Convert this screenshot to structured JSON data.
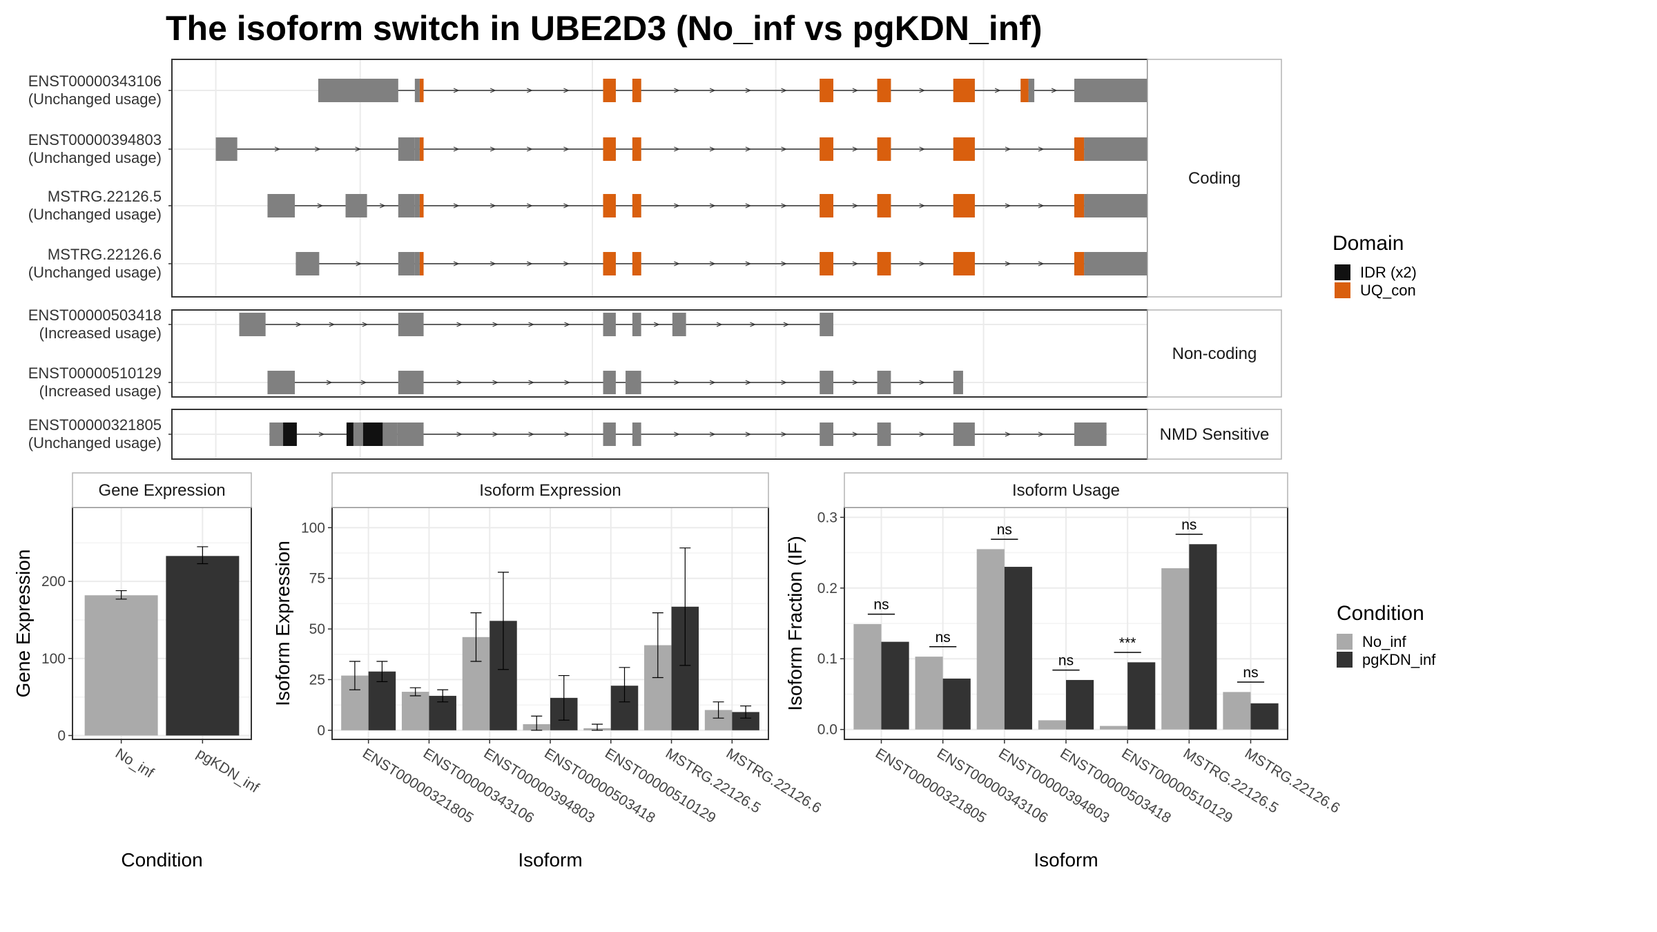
{
  "title": "The isoform switch in UBE2D3 (No_inf vs pgKDN_inf)",
  "colors": {
    "exon": "#808080",
    "idr": "#111111",
    "uq_con": "#D95F0E",
    "no_inf": "#AAAAAA",
    "pgkdn_inf": "#333333",
    "grid": "#EBEBEB",
    "strip_bg": "#FFFFFF",
    "panel_border": "#333333",
    "strip_border": "#B3B3B3"
  },
  "structure": {
    "x_range": [
      0,
      1000
    ],
    "groups": [
      {
        "label": "Coding",
        "transcripts": [
          {
            "id": "ENST00000343106",
            "usage": "(Unchanged usage)",
            "exons": [
              [
                150,
                232
              ],
              [
                249,
                254
              ],
              [
                442,
                455
              ],
              [
                472,
                481
              ],
              [
                664,
                678
              ],
              [
                723,
                737
              ],
              [
                801,
                823
              ],
              [
                870,
                878
              ],
              [
                878,
                884
              ],
              [
                925,
                1005
              ]
            ],
            "domains": [
              {
                "type": "uq_con",
                "spans": [
                  [
                    254,
                    258
                  ],
                  [
                    442,
                    455
                  ],
                  [
                    472,
                    481
                  ],
                  [
                    664,
                    678
                  ],
                  [
                    723,
                    737
                  ],
                  [
                    801,
                    823
                  ],
                  [
                    870,
                    878
                  ]
                ]
              }
            ]
          },
          {
            "id": "ENST00000394803",
            "usage": "(Unchanged usage)",
            "exons": [
              [
                45,
                67
              ],
              [
                232,
                249
              ],
              [
                249,
                254
              ],
              [
                442,
                455
              ],
              [
                472,
                481
              ],
              [
                664,
                678
              ],
              [
                723,
                737
              ],
              [
                801,
                823
              ],
              [
                925,
                935
              ],
              [
                935,
                1024
              ]
            ],
            "domains": [
              {
                "type": "uq_con",
                "spans": [
                  [
                    254,
                    258
                  ],
                  [
                    442,
                    455
                  ],
                  [
                    472,
                    481
                  ],
                  [
                    664,
                    678
                  ],
                  [
                    723,
                    737
                  ],
                  [
                    801,
                    823
                  ],
                  [
                    925,
                    935
                  ]
                ]
              }
            ]
          },
          {
            "id": "MSTRG.22126.5",
            "usage": "(Unchanged usage)",
            "exons": [
              [
                98,
                126
              ],
              [
                178,
                200
              ],
              [
                232,
                249
              ],
              [
                249,
                254
              ],
              [
                442,
                455
              ],
              [
                472,
                481
              ],
              [
                664,
                678
              ],
              [
                723,
                737
              ],
              [
                801,
                823
              ],
              [
                925,
                935
              ],
              [
                935,
                1024
              ]
            ],
            "domains": [
              {
                "type": "uq_con",
                "spans": [
                  [
                    254,
                    258
                  ],
                  [
                    442,
                    455
                  ],
                  [
                    472,
                    481
                  ],
                  [
                    664,
                    678
                  ],
                  [
                    723,
                    737
                  ],
                  [
                    801,
                    823
                  ],
                  [
                    925,
                    935
                  ]
                ]
              }
            ]
          },
          {
            "id": "MSTRG.22126.6",
            "usage": "(Unchanged usage)",
            "exons": [
              [
                127,
                151
              ],
              [
                232,
                249
              ],
              [
                249,
                254
              ],
              [
                442,
                455
              ],
              [
                472,
                481
              ],
              [
                664,
                678
              ],
              [
                723,
                737
              ],
              [
                801,
                823
              ],
              [
                925,
                935
              ],
              [
                935,
                1024
              ]
            ],
            "domains": [
              {
                "type": "uq_con",
                "spans": [
                  [
                    254,
                    258
                  ],
                  [
                    442,
                    455
                  ],
                  [
                    472,
                    481
                  ],
                  [
                    664,
                    678
                  ],
                  [
                    723,
                    737
                  ],
                  [
                    801,
                    823
                  ],
                  [
                    925,
                    935
                  ]
                ]
              }
            ]
          }
        ]
      },
      {
        "label": "Non-coding",
        "transcripts": [
          {
            "id": "ENST00000503418",
            "usage": "(Increased usage)",
            "exons": [
              [
                69,
                96
              ],
              [
                232,
                258
              ],
              [
                442,
                455
              ],
              [
                472,
                481
              ],
              [
                513,
                527
              ],
              [
                664,
                678
              ]
            ],
            "domains": []
          },
          {
            "id": "ENST00000510129",
            "usage": "(Increased usage)",
            "exons": [
              [
                98,
                126
              ],
              [
                232,
                258
              ],
              [
                442,
                455
              ],
              [
                465,
                481
              ],
              [
                664,
                678
              ],
              [
                723,
                737
              ],
              [
                801,
                811
              ]
            ],
            "domains": []
          }
        ]
      },
      {
        "label": "NMD Sensitive",
        "transcripts": [
          {
            "id": "ENST00000321805",
            "usage": "(Unchanged usage)",
            "exons": [
              [
                100,
                128
              ],
              [
                179,
                231
              ],
              [
                231,
                258
              ],
              [
                442,
                455
              ],
              [
                472,
                481
              ],
              [
                664,
                678
              ],
              [
                723,
                737
              ],
              [
                801,
                823
              ],
              [
                925,
                958
              ]
            ],
            "domains": [
              {
                "type": "idr",
                "spans": [
                  [
                    114,
                    128
                  ],
                  [
                    179,
                    186
                  ],
                  [
                    196,
                    216
                  ]
                ]
              }
            ]
          }
        ]
      }
    ]
  },
  "legend_domain": {
    "title": "Domain",
    "items": [
      {
        "label": "IDR (x2)",
        "color": "#111111"
      },
      {
        "label": "UQ_con",
        "color": "#D95F0E"
      }
    ]
  },
  "legend_condition": {
    "title": "Condition",
    "items": [
      {
        "label": "No_inf",
        "color": "#AAAAAA"
      },
      {
        "label": "pgKDN_inf",
        "color": "#333333"
      }
    ]
  },
  "chart_data": [
    {
      "type": "bar",
      "title": "Gene Expression",
      "xlabel": "Condition",
      "ylabel": "Gene Expression",
      "ylim": [
        -5,
        296
      ],
      "yticks": [
        0,
        100,
        200
      ],
      "categories": [
        "No_inf",
        "pgKDN_inf"
      ],
      "values": [
        182,
        233
      ],
      "errors": [
        [
          177,
          188
        ],
        [
          223,
          245
        ]
      ]
    },
    {
      "type": "bar",
      "title": "Isoform Expression",
      "xlabel": "Isoform",
      "ylabel": "Isoform Expression",
      "ylim": [
        -4.5,
        110
      ],
      "yticks": [
        0,
        25,
        50,
        75,
        100
      ],
      "categories": [
        "ENST00000321805",
        "ENST00000343106",
        "ENST00000394803",
        "ENST00000503418",
        "ENST00000510129",
        "MSTRG.22126.5",
        "MSTRG.22126.6"
      ],
      "series": [
        {
          "name": "No_inf",
          "values": [
            27,
            19,
            46,
            3,
            1,
            42,
            10
          ],
          "errors": [
            [
              20,
              34
            ],
            [
              17,
              21
            ],
            [
              34,
              58
            ],
            [
              0,
              7
            ],
            [
              0,
              3
            ],
            [
              26,
              58
            ],
            [
              6,
              14
            ]
          ]
        },
        {
          "name": "pgKDN_inf",
          "values": [
            29,
            17,
            54,
            16,
            22,
            61,
            9
          ],
          "errors": [
            [
              24,
              34
            ],
            [
              14,
              20
            ],
            [
              30,
              78
            ],
            [
              5,
              27
            ],
            [
              14,
              31
            ],
            [
              32,
              90
            ],
            [
              6,
              12
            ]
          ]
        }
      ]
    },
    {
      "type": "bar",
      "title": "Isoform Usage",
      "xlabel": "Isoform",
      "ylabel": "Isoform Fraction (IF)",
      "ylim": [
        -0.014,
        0.314
      ],
      "yticks": [
        0.0,
        0.1,
        0.2,
        0.3
      ],
      "ytick_labels": [
        "0.0",
        "0.1",
        "0.2",
        "0.3"
      ],
      "categories": [
        "ENST00000321805",
        "ENST00000343106",
        "ENST00000394803",
        "ENST00000503418",
        "ENST00000510129",
        "MSTRG.22126.5",
        "MSTRG.22126.6"
      ],
      "series": [
        {
          "name": "No_inf",
          "values": [
            0.149,
            0.103,
            0.255,
            0.013,
            0.005,
            0.228,
            0.053
          ]
        },
        {
          "name": "pgKDN_inf",
          "values": [
            0.124,
            0.072,
            0.23,
            0.07,
            0.095,
            0.262,
            0.037
          ]
        }
      ],
      "significance": [
        {
          "label": "ns",
          "y": 0.163
        },
        {
          "label": "ns",
          "y": 0.117
        },
        {
          "label": "ns",
          "y": 0.269
        },
        {
          "label": "ns",
          "y": 0.084
        },
        {
          "label": "***",
          "y": 0.109
        },
        {
          "label": "ns",
          "y": 0.276
        },
        {
          "label": "ns",
          "y": 0.067
        }
      ]
    }
  ]
}
